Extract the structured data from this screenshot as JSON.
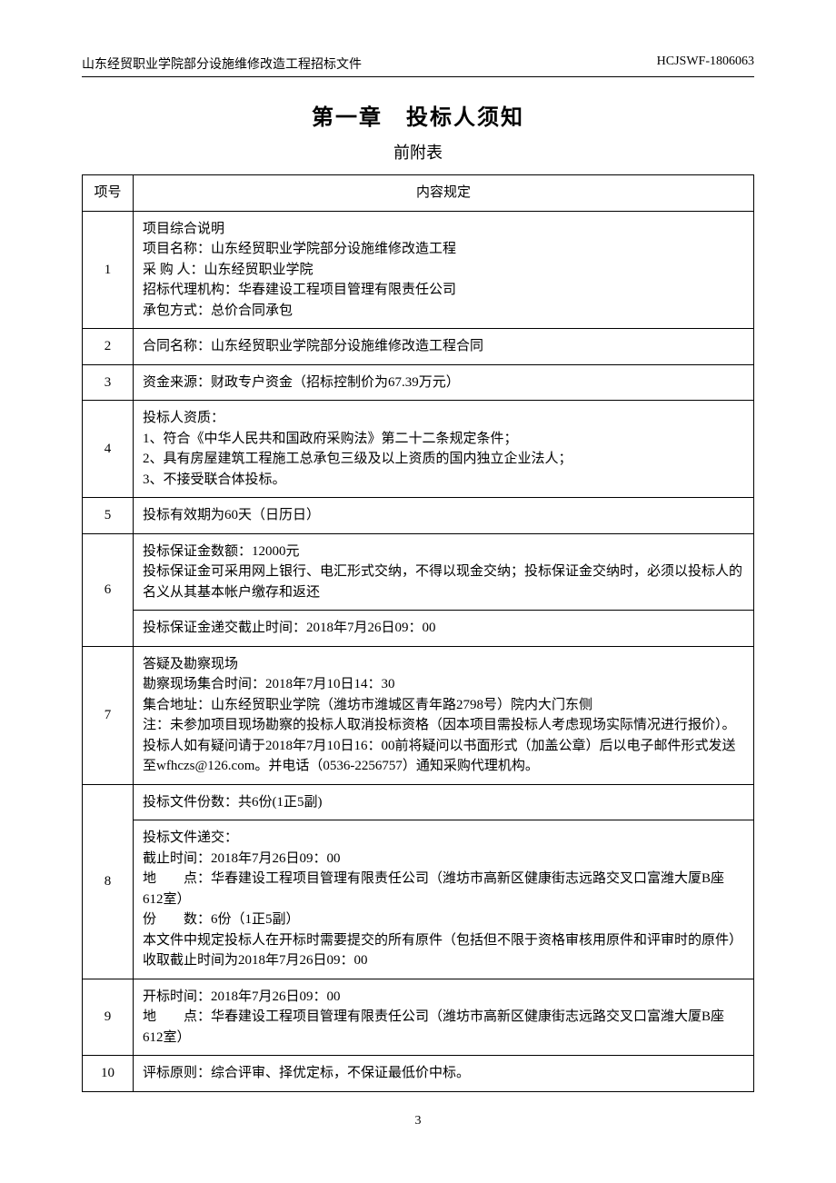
{
  "header": {
    "left": "山东经贸职业学院部分设施维修改造工程招标文件",
    "right": "HCJSWF-1806063"
  },
  "chapter_title": "第一章　投标人须知",
  "subtitle": "前附表",
  "table": {
    "headers": {
      "num": "项号",
      "content": "内容规定"
    },
    "rows": [
      {
        "num": "1",
        "cells": [
          "项目综合说明\n项目名称：山东经贸职业学院部分设施维修改造工程\n采 购 人：山东经贸职业学院\n招标代理机构：华春建设工程项目管理有限责任公司\n承包方式：总价合同承包"
        ]
      },
      {
        "num": "2",
        "cells": [
          "合同名称：山东经贸职业学院部分设施维修改造工程合同"
        ]
      },
      {
        "num": "3",
        "cells": [
          "资金来源：财政专户资金（招标控制价为67.39万元）"
        ]
      },
      {
        "num": "4",
        "cells": [
          "投标人资质：\n1、符合《中华人民共和国政府采购法》第二十二条规定条件；\n2、具有房屋建筑工程施工总承包三级及以上资质的国内独立企业法人；\n3、不接受联合体投标。"
        ]
      },
      {
        "num": "5",
        "cells": [
          "投标有效期为60天（日历日）"
        ]
      },
      {
        "num": "6",
        "cells": [
          "投标保证金数额：12000元\n投标保证金可采用网上银行、电汇形式交纳，不得以现金交纳；投标保证金交纳时，必须以投标人的名义从其基本帐户缴存和返还",
          "投标保证金递交截止时间：2018年7月26日09：00"
        ]
      },
      {
        "num": "7",
        "cells": [
          "答疑及勘察现场\n勘察现场集合时间：2018年7月10日14：30\n集合地址：山东经贸职业学院（潍坊市潍城区青年路2798号）院内大门东侧\n注：未参加项目现场勘察的投标人取消投标资格（因本项目需投标人考虑现场实际情况进行报价）。\n投标人如有疑问请于2018年7月10日16：00前将疑问以书面形式（加盖公章）后以电子邮件形式发送至wfhczs@126.com。并电话（0536-2256757）通知采购代理机构。"
        ]
      },
      {
        "num": "8",
        "cells": [
          "投标文件份数：共6份(1正5副)",
          "投标文件递交：\n截止时间：2018年7月26日09：00\n地　　点：华春建设工程项目管理有限责任公司（潍坊市高新区健康街志远路交叉口富潍大厦B座612室）\n份　　数：6份（1正5副）\n本文件中规定投标人在开标时需要提交的所有原件（包括但不限于资格审核用原件和评审时的原件）收取截止时间为2018年7月26日09：00"
        ]
      },
      {
        "num": "9",
        "cells": [
          "开标时间：2018年7月26日09：00\n地　　点：华春建设工程项目管理有限责任公司（潍坊市高新区健康街志远路交叉口富潍大厦B座612室）"
        ]
      },
      {
        "num": "10",
        "cells": [
          "评标原则：综合评审、择优定标，不保证最低价中标。"
        ]
      }
    ]
  },
  "page_number": "3"
}
